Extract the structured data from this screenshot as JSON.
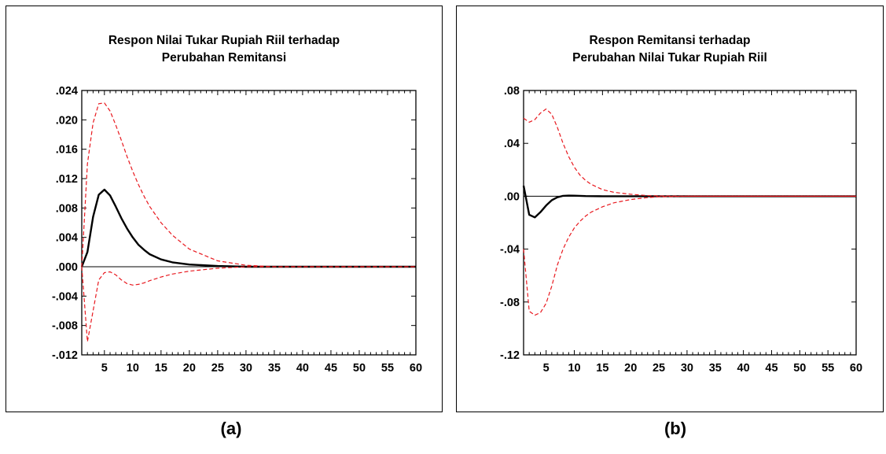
{
  "panels": [
    {
      "title_line1": "Respon Nilai Tukar Rupiah Riil terhadap",
      "title_line2": "Perubahan Remitansi",
      "caption": "(a)"
    },
    {
      "title_line1": "Respon Remitansi terhadap",
      "title_line2": "Perubahan Nilai Tukar Rupiah Riil",
      "caption": "(b)"
    }
  ],
  "colors": {
    "response": "#000000",
    "bands": "#e8191f",
    "zero_line": "#000000"
  },
  "chart_data": [
    {
      "type": "line",
      "title": "Respon Nilai Tukar Rupiah Riil terhadap Perubahan Remitansi",
      "xlim": [
        1,
        60
      ],
      "ylim": [
        -0.012,
        0.024
      ],
      "x_ticks": [
        5,
        10,
        15,
        20,
        25,
        30,
        35,
        40,
        45,
        50,
        55,
        60
      ],
      "y_ticks": [
        {
          "value": 0.024,
          "label": ".024"
        },
        {
          "value": 0.02,
          "label": ".020"
        },
        {
          "value": 0.016,
          "label": ".016"
        },
        {
          "value": 0.012,
          "label": ".012"
        },
        {
          "value": 0.008,
          "label": ".008"
        },
        {
          "value": 0.004,
          "label": ".004"
        },
        {
          "value": 0.0,
          "label": ".000"
        },
        {
          "value": -0.004,
          "label": "-.004"
        },
        {
          "value": -0.008,
          "label": "-.008"
        },
        {
          "value": -0.012,
          "label": "-.012"
        }
      ],
      "series": [
        {
          "style": "solid",
          "color": "#000000",
          "x": [
            1,
            2,
            3,
            4,
            5,
            6,
            7,
            8,
            9,
            10,
            11,
            12,
            13,
            15,
            17,
            20,
            25,
            30,
            35,
            40,
            50,
            60
          ],
          "y": [
            0.0,
            0.002,
            0.0068,
            0.0098,
            0.0105,
            0.0097,
            0.0082,
            0.0066,
            0.0052,
            0.004,
            0.003,
            0.0023,
            0.0017,
            0.001,
            0.0006,
            0.0003,
            0.0001,
            0.0,
            0.0,
            0.0,
            0.0,
            0.0
          ]
        },
        {
          "style": "dashed",
          "color": "#e8191f",
          "x": [
            1,
            2,
            3,
            4,
            5,
            6,
            7,
            8,
            9,
            10,
            11,
            12,
            13,
            15,
            17,
            20,
            25,
            30,
            35,
            40,
            50,
            60
          ],
          "y": [
            0.0,
            0.014,
            0.0196,
            0.0222,
            0.0223,
            0.0212,
            0.0193,
            0.0172,
            0.015,
            0.013,
            0.0112,
            0.0096,
            0.0082,
            0.006,
            0.0043,
            0.0024,
            0.0008,
            0.0002,
            0.0,
            0.0,
            0.0,
            0.0
          ]
        },
        {
          "style": "dashed",
          "color": "#e8191f",
          "x": [
            1,
            2,
            3,
            4,
            5,
            6,
            7,
            8,
            9,
            10,
            11,
            12,
            13,
            15,
            17,
            20,
            25,
            30,
            35,
            40,
            50,
            60
          ],
          "y": [
            0.0,
            -0.0102,
            -0.006,
            -0.0018,
            -0.0008,
            -0.0007,
            -0.0011,
            -0.0018,
            -0.0023,
            -0.0025,
            -0.0024,
            -0.0022,
            -0.0019,
            -0.0014,
            -0.001,
            -0.0006,
            -0.0002,
            0.0,
            0.0,
            0.0,
            0.0,
            0.0
          ]
        }
      ]
    },
    {
      "type": "line",
      "title": "Respon Remitansi terhadap Perubahan Nilai Tukar Rupiah Riil",
      "xlim": [
        1,
        60
      ],
      "ylim": [
        -0.12,
        0.08
      ],
      "x_ticks": [
        5,
        10,
        15,
        20,
        25,
        30,
        35,
        40,
        45,
        50,
        55,
        60
      ],
      "y_ticks": [
        {
          "value": 0.08,
          "label": ".08"
        },
        {
          "value": 0.04,
          "label": ".04"
        },
        {
          "value": 0.0,
          "label": ".00"
        },
        {
          "value": -0.04,
          "label": "-.04"
        },
        {
          "value": -0.08,
          "label": "-.08"
        },
        {
          "value": -0.12,
          "label": "-.12"
        }
      ],
      "series": [
        {
          "style": "solid",
          "color": "#000000",
          "x": [
            1,
            2,
            3,
            4,
            5,
            6,
            7,
            8,
            9,
            10,
            12,
            15,
            20,
            30,
            40,
            50,
            60
          ],
          "y": [
            0.008,
            -0.014,
            -0.016,
            -0.012,
            -0.007,
            -0.003,
            -0.0008,
            0.0003,
            0.0005,
            0.0004,
            0.0001,
            0.0,
            0.0,
            0.0,
            0.0,
            0.0,
            0.0
          ]
        },
        {
          "style": "dashed",
          "color": "#e8191f",
          "x": [
            1,
            2,
            3,
            4,
            5,
            6,
            7,
            8,
            9,
            10,
            11,
            12,
            13,
            15,
            17,
            20,
            23,
            25,
            30,
            40,
            50,
            60
          ],
          "y": [
            0.059,
            0.056,
            0.058,
            0.063,
            0.066,
            0.062,
            0.052,
            0.04,
            0.03,
            0.022,
            0.016,
            0.012,
            0.009,
            0.005,
            0.003,
            0.0015,
            0.0005,
            0.0002,
            0.0,
            0.0,
            0.0,
            0.0
          ]
        },
        {
          "style": "dashed",
          "color": "#e8191f",
          "x": [
            1,
            2,
            3,
            4,
            5,
            6,
            7,
            8,
            9,
            10,
            11,
            12,
            13,
            15,
            17,
            20,
            23,
            25,
            30,
            40,
            50,
            60
          ],
          "y": [
            -0.04,
            -0.087,
            -0.09,
            -0.088,
            -0.081,
            -0.068,
            -0.052,
            -0.04,
            -0.031,
            -0.024,
            -0.019,
            -0.015,
            -0.012,
            -0.008,
            -0.005,
            -0.0025,
            -0.001,
            -0.0004,
            0.0,
            0.0,
            0.0,
            0.0
          ]
        }
      ]
    }
  ]
}
